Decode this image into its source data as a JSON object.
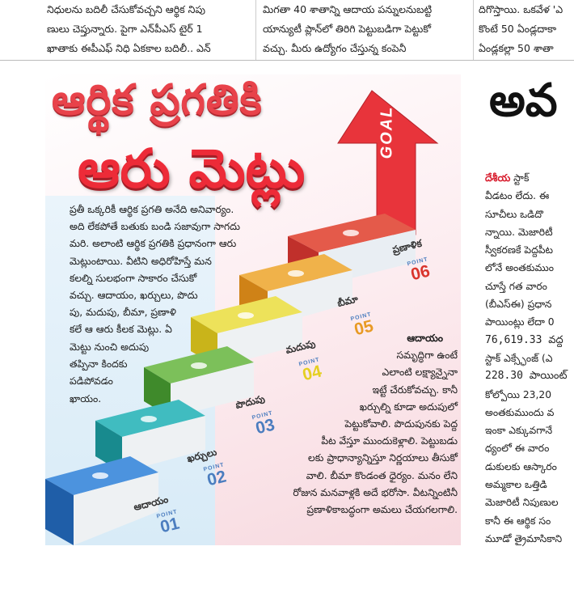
{
  "top_strip": {
    "col1": [
      "నిధులను బదిలీ చేసుకోవచ్చని ఆర్థిక నిపు",
      "ణులు చెప్తున్నారు. పైగా ఎన్‌పీఎస్ టైర్ 1",
      "ఖాతాకు ఈపీఎఫ్ నిధి ఏకకాల బదిలీ.. ఎన్"
    ],
    "col2": [
      "మిగతా 40 శాతాన్ని ఆదాయ పన్నులనుబట్టి",
      "యాన్యుటీ ప్లాన్‌లో తిరిగి పెట్టుబడిగా పెట్టుకో",
      "వచ్చు. మీరు ఉద్యోగం చేస్తున్న కంపెనీ"
    ],
    "col3": [
      "దిగొస్తాయి. ఒకవేళ 'ఎ",
      "కొంటే 50 ఏండ్లదాకా",
      "ఏండ్లకల్లా 50 శాతా"
    ]
  },
  "article": {
    "title_line1": "ఆర్థిక ప్రగతికి",
    "title_line2": "ఆరు మెట్లు",
    "goal_label": "GOAL",
    "intro_lines": [
      "ప్రతీ ఒక్కరికీ ఆర్థిక ప్రగతి అనేది అనివార్యం.",
      "అది లేకపోతే బతుకు బండి సజావుగా సాగదు",
      "మరి. అలాంటి ఆర్థిక ప్రగతికి ప్రధానంగా ఆరు",
      "మెట్లుంటాయి. వీటిని అధిరోహిస్తే మన",
      "కలల్ని సులభంగా సాకారం చేసుకో",
      "వచ్చు. ఆదాయం, ఖర్చులు, పొదు",
      "పు, మదుపు, బీమా, ప్రణాళి",
      "కలే ఆ ఆరు కీలక మెట్లు. ఏ"
    ],
    "intro_tail_lines": [
      "మెట్టు నుంచి అదుపు",
      "తప్పినా     కిందకు",
      "పడిపోవడం",
      "ఖాయం."
    ],
    "right_head": "ఆదాయం",
    "right_lines": [
      "సమృద్ధిగా ఉంటే",
      "ఎలాంటి లక్ష్యాన్నైనా",
      "ఇట్టే చేరుకోవచ్చు. కానీ",
      "ఖర్చుల్ని కూడా అదుపులో",
      "పెట్టుకోవాలి. పొదుపునకు పెద్ద",
      "పీట వేస్తూ ముందుకెళ్లాలి. పెట్టుబడు",
      "లకు ప్రాధాన్యాన్నిస్తూ నిర్ణయాలు తీసుకో",
      "వాలి. బీమా కొండంత ధైర్యం. మనం లేని",
      "రోజున మనవాళ్లకి అదే భరోసా. వీటన్నింటినీ",
      "ప్రణాళికాబద్ధంగా అమలు చేయగలగాలి."
    ],
    "steps": [
      {
        "label": "ఆదాయం",
        "point_word": "POINT",
        "number": "01",
        "color": "#2f76c9"
      },
      {
        "label": "ఖర్చులు",
        "point_word": "POINT",
        "number": "02",
        "color": "#1fa1a4"
      },
      {
        "label": "పొదుపు",
        "point_word": "POINT",
        "number": "03",
        "color": "#5aa93c"
      },
      {
        "label": "మదుపు",
        "point_word": "POINT",
        "number": "04",
        "color": "#e5cf22"
      },
      {
        "label": "బీమా",
        "point_word": "POINT",
        "number": "05",
        "color": "#e89a24"
      },
      {
        "label": "ప్రణాళిక",
        "point_word": "POINT",
        "number": "06",
        "color": "#d9352d"
      }
    ]
  },
  "side_article": {
    "headline_fragment": "అవ",
    "lines": [
      [
        "దేశీయ",
        " స్టాక్"
      ],
      [
        "వీడటం లేదు. ఈ"
      ],
      [
        "సూచీలు ఒడిదొ"
      ],
      [
        "న్నాయి. మెజారిటీ"
      ],
      [
        "స్వీకరణకే పెద్దపీట"
      ],
      [
        "లోనే అంతకుముం"
      ],
      [
        "చూస్తే గత వారం"
      ],
      [
        "(బీఎస్‌ఈ) ప్రధాన"
      ],
      [
        "పాయింట్లు లేదా 0"
      ],
      [
        "76,619.33 వద్ద"
      ],
      [
        "స్టాక్ ఎక్స్ఛేంజ్ (ఎ"
      ],
      [
        "228.30 పాయింట్"
      ],
      [
        "కోల్పోయి 23,20"
      ],
      [
        "అంతకుముందు వ"
      ],
      [
        "ఇంకా ఎక్కువగానే"
      ],
      [
        "ధ్యంలో ఈ వారం"
      ],
      [
        "డుకులకు ఆస్కారం"
      ],
      [
        "అమ్మకాల ఒత్తిడి"
      ],
      [
        "మెజారిటీ నిపుణుల"
      ],
      [
        "కానీ ఈ ఆర్థిక సం"
      ],
      [
        "మూడో త్రైమాసికాని"
      ]
    ]
  }
}
